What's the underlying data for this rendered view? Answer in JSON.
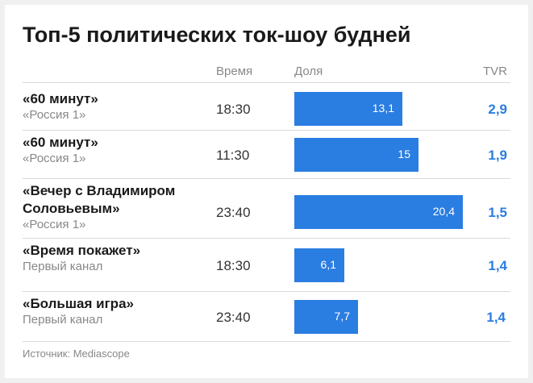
{
  "title": "Топ-5 политических ток-шоу будней",
  "headers": {
    "time": "Время",
    "share": "Доля",
    "tvr": "TVR"
  },
  "source": "Источник: Mediascope",
  "colors": {
    "bar": "#2a7de1",
    "tvr": "#2a7de1"
  },
  "chart_data": {
    "type": "table",
    "title": "Топ-5 политических ток-шоу будней",
    "columns": [
      "Время",
      "Доля",
      "TVR"
    ],
    "share_range": [
      0,
      25
    ],
    "rows": [
      {
        "show": "«60 минут»",
        "channel": "«Россия 1»",
        "time": "18:30",
        "share": 13.1,
        "share_label": "13,1",
        "tvr": "2,9"
      },
      {
        "show": "«60 минут»",
        "channel": "«Россия 1»",
        "time": "11:30",
        "share": 15,
        "share_label": "15",
        "tvr": "1,9"
      },
      {
        "show": "«Вечер с Владимиром Соловьевым»",
        "channel": "«Россия 1»",
        "time": "23:40",
        "share": 20.4,
        "share_label": "20,4",
        "tvr": "1,5"
      },
      {
        "show": "«Время покажет»",
        "channel": "Первый канал",
        "time": "18:30",
        "share": 6.1,
        "share_label": "6,1",
        "tvr": "1,4"
      },
      {
        "show": "«Большая игра»",
        "channel": "Первый канал",
        "time": "23:40",
        "share": 7.7,
        "share_label": "7,7",
        "tvr": "1,4"
      }
    ]
  }
}
